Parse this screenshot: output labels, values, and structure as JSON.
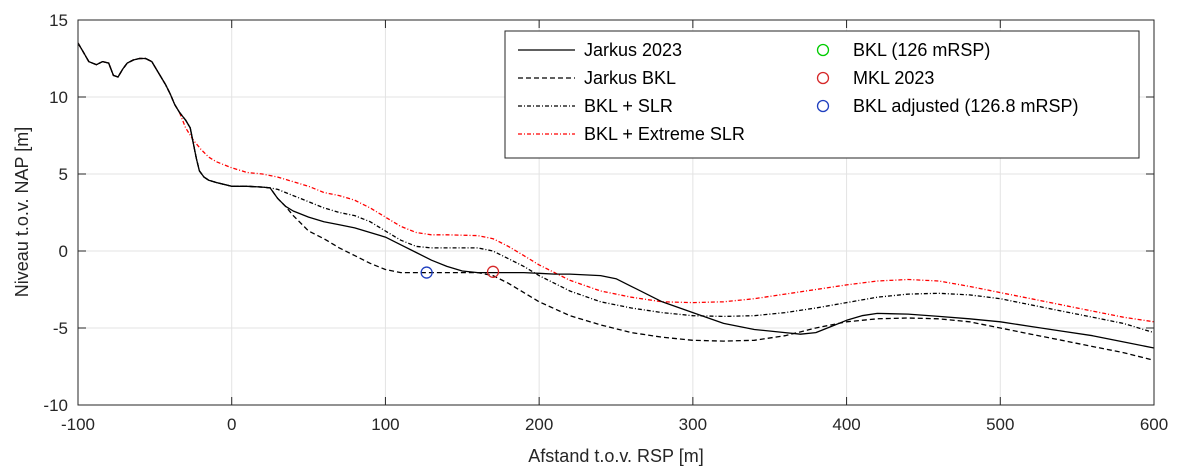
{
  "chart_data": {
    "type": "line",
    "xlabel": "Afstand t.o.v. RSP [m]",
    "ylabel": "Niveau t.o.v. NAP [m]",
    "xlim": [
      -100,
      600
    ],
    "ylim": [
      -10,
      15
    ],
    "xticks": [
      -100,
      0,
      100,
      200,
      300,
      400,
      500,
      600
    ],
    "yticks": [
      -10,
      -5,
      0,
      5,
      10,
      15
    ],
    "xtick_labels": [
      "-100",
      "0",
      "100",
      "200",
      "300",
      "400",
      "500",
      "600"
    ],
    "ytick_labels": [
      "-10",
      "-5",
      "0",
      "5",
      "10",
      "15"
    ],
    "grid": true,
    "legend_position": "top-right",
    "series": [
      {
        "name": "Jarkus 2023",
        "style": "solid",
        "color": "#000000",
        "x": [
          -100,
          -97,
          -93,
          -88,
          -84,
          -80,
          -77,
          -74,
          -71,
          -68,
          -64,
          -60,
          -56,
          -52,
          -49,
          -46,
          -43,
          -40,
          -37,
          -34,
          -30,
          -27,
          -25,
          -23,
          -21,
          -18,
          -15,
          -10,
          0,
          10,
          20,
          25,
          30,
          35,
          40,
          50,
          60,
          70,
          80,
          90,
          100,
          110,
          120,
          130,
          140,
          150,
          160,
          170,
          180,
          190,
          200,
          210,
          220,
          230,
          240,
          250,
          260,
          280,
          300,
          320,
          340,
          360,
          370,
          380,
          390,
          400,
          410,
          420,
          440,
          460,
          480,
          500,
          520,
          540,
          560,
          580,
          600
        ],
        "y": [
          13.5,
          13,
          12.3,
          12.1,
          12.3,
          12.2,
          11.4,
          11.3,
          11.8,
          12.2,
          12.4,
          12.5,
          12.5,
          12.3,
          11.8,
          11.3,
          10.8,
          10.2,
          9.5,
          9.0,
          8.5,
          8.0,
          7.0,
          6.0,
          5.2,
          4.8,
          4.6,
          4.45,
          4.2,
          4.2,
          4.15,
          4.1,
          3.4,
          2.9,
          2.6,
          2.2,
          1.9,
          1.7,
          1.5,
          1.2,
          0.9,
          0.4,
          -0.1,
          -0.6,
          -1.0,
          -1.3,
          -1.4,
          -1.4,
          -1.4,
          -1.4,
          -1.45,
          -1.5,
          -1.5,
          -1.55,
          -1.6,
          -1.8,
          -2.3,
          -3.3,
          -4.0,
          -4.7,
          -5.1,
          -5.3,
          -5.4,
          -5.3,
          -4.9,
          -4.5,
          -4.2,
          -4.05,
          -4.1,
          -4.25,
          -4.4,
          -4.6,
          -4.9,
          -5.2,
          -5.5,
          -5.9,
          -6.3
        ]
      },
      {
        "name": "Jarkus BKL",
        "style": "dashed",
        "color": "#000000",
        "x": [
          -100,
          -97,
          -93,
          -88,
          -84,
          -80,
          -77,
          -74,
          -71,
          -68,
          -64,
          -60,
          -56,
          -52,
          -49,
          -46,
          -43,
          -40,
          -37,
          -34,
          -30,
          -27,
          -25,
          -23,
          -21,
          -18,
          -15,
          -10,
          0,
          10,
          20,
          25,
          30,
          35,
          40,
          50,
          60,
          70,
          80,
          90,
          100,
          110,
          120,
          126,
          140,
          160,
          170,
          180,
          190,
          200,
          220,
          240,
          260,
          280,
          300,
          320,
          340,
          360,
          380,
          400,
          420,
          440,
          460,
          480,
          500,
          520,
          540,
          560,
          580,
          600
        ],
        "y": [
          13.5,
          13,
          12.3,
          12.1,
          12.3,
          12.2,
          11.4,
          11.3,
          11.8,
          12.2,
          12.4,
          12.5,
          12.5,
          12.3,
          11.8,
          11.3,
          10.8,
          10.2,
          9.5,
          9.0,
          8.5,
          8.0,
          7.0,
          6.0,
          5.2,
          4.8,
          4.6,
          4.45,
          4.2,
          4.2,
          4.15,
          4.1,
          3.4,
          2.9,
          2.3,
          1.3,
          0.8,
          0.2,
          -0.3,
          -0.8,
          -1.2,
          -1.4,
          -1.4,
          -1.4,
          -1.4,
          -1.4,
          -1.6,
          -2.1,
          -2.7,
          -3.3,
          -4.2,
          -4.8,
          -5.3,
          -5.6,
          -5.8,
          -5.85,
          -5.8,
          -5.5,
          -5.0,
          -4.6,
          -4.4,
          -4.35,
          -4.4,
          -4.6,
          -5.0,
          -5.4,
          -5.8,
          -6.2,
          -6.6,
          -7.1
        ]
      },
      {
        "name": "BKL + SLR",
        "style": "dashdot",
        "color": "#000000",
        "x": [
          -100,
          -97,
          -93,
          -88,
          -84,
          -80,
          -77,
          -74,
          -71,
          -68,
          -64,
          -60,
          -56,
          -52,
          -49,
          -46,
          -43,
          -40,
          -37,
          -34,
          -30,
          -27,
          -25,
          -23,
          -21,
          -18,
          -15,
          -10,
          0,
          10,
          20,
          25,
          30,
          40,
          50,
          60,
          70,
          80,
          90,
          100,
          110,
          120,
          130,
          140,
          160,
          170,
          180,
          190,
          200,
          220,
          240,
          260,
          280,
          300,
          320,
          340,
          360,
          380,
          400,
          420,
          440,
          460,
          480,
          500,
          520,
          540,
          560,
          580,
          600
        ],
        "y": [
          13.5,
          13,
          12.3,
          12.1,
          12.3,
          12.2,
          11.4,
          11.3,
          11.8,
          12.2,
          12.4,
          12.5,
          12.5,
          12.3,
          11.8,
          11.3,
          10.8,
          10.2,
          9.5,
          9.0,
          8.5,
          8.0,
          7.0,
          6.0,
          5.2,
          4.8,
          4.6,
          4.45,
          4.2,
          4.2,
          4.15,
          4.1,
          4.0,
          3.6,
          3.2,
          2.8,
          2.5,
          2.3,
          1.9,
          1.3,
          0.7,
          0.3,
          0.2,
          0.2,
          0.2,
          0.0,
          -0.5,
          -1.0,
          -1.6,
          -2.6,
          -3.3,
          -3.7,
          -4.0,
          -4.2,
          -4.25,
          -4.2,
          -4.0,
          -3.7,
          -3.35,
          -3.0,
          -2.8,
          -2.75,
          -2.85,
          -3.1,
          -3.5,
          -3.9,
          -4.3,
          -4.7,
          -5.3
        ]
      },
      {
        "name": "BKL + Extreme SLR",
        "style": "dashdot",
        "color": "#ff0000",
        "x": [
          -100,
          -97,
          -93,
          -88,
          -84,
          -80,
          -77,
          -74,
          -71,
          -68,
          -64,
          -60,
          -56,
          -52,
          -49,
          -46,
          -43,
          -40,
          -37,
          -34,
          -30,
          -25,
          -20,
          -15,
          -10,
          -5,
          0,
          10,
          20,
          30,
          40,
          50,
          60,
          70,
          80,
          90,
          100,
          110,
          120,
          130,
          140,
          160,
          170,
          180,
          190,
          200,
          220,
          240,
          260,
          280,
          300,
          320,
          340,
          360,
          380,
          400,
          420,
          440,
          460,
          480,
          500,
          520,
          540,
          560,
          580,
          600
        ],
        "y": [
          13.5,
          13,
          12.3,
          12.1,
          12.3,
          12.2,
          11.4,
          11.3,
          11.8,
          12.2,
          12.4,
          12.5,
          12.5,
          12.3,
          11.8,
          11.3,
          10.8,
          10.2,
          9.5,
          9.0,
          8.0,
          7.2,
          6.6,
          6.1,
          5.8,
          5.6,
          5.4,
          5.1,
          5.0,
          4.8,
          4.5,
          4.2,
          3.8,
          3.6,
          3.3,
          2.8,
          2.2,
          1.6,
          1.2,
          1.05,
          1.05,
          1.0,
          0.8,
          0.3,
          -0.3,
          -0.9,
          -1.9,
          -2.6,
          -3.0,
          -3.3,
          -3.35,
          -3.3,
          -3.1,
          -2.8,
          -2.5,
          -2.2,
          -1.95,
          -1.85,
          -1.95,
          -2.3,
          -2.7,
          -3.1,
          -3.5,
          -3.9,
          -4.3,
          -4.6
        ]
      }
    ],
    "markers": [
      {
        "name": "BKL (126 mRSP)",
        "x": 126,
        "y": -1.4,
        "color": "#00cc00",
        "visible": false
      },
      {
        "name": "MKL 2023",
        "x": 170,
        "y": -1.35,
        "color": "#d62728",
        "visible": true
      },
      {
        "name": "BKL adjusted (126.8 mRSP)",
        "x": 126.8,
        "y": -1.4,
        "color": "#1f3fbf",
        "visible": true
      }
    ]
  }
}
